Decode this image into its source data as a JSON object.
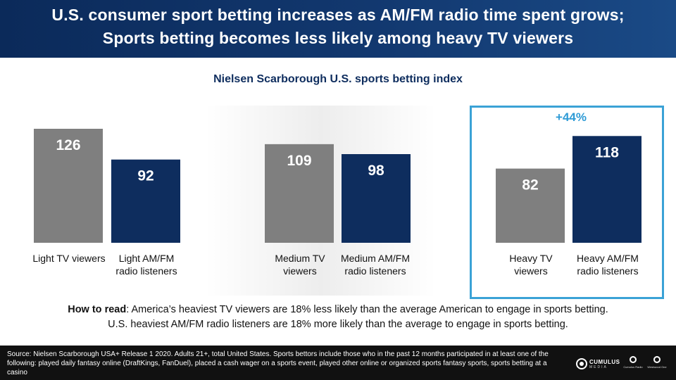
{
  "header": {
    "title_line1": "U.S. consumer sport betting increases as AM/FM radio time spent grows;",
    "title_line2": "Sports betting  becomes less likely among heavy TV viewers"
  },
  "colors": {
    "header_bg": "#12386f",
    "tv_bar": "#7f7f7f",
    "radio_bar": "#0e2d5e",
    "highlight": "#3aa2d6",
    "footer_bg": "#111111"
  },
  "chart_data": {
    "type": "bar",
    "title": "Nielsen Scarborough U.S. sports betting index",
    "categories": [
      "Light TV viewers",
      "Light AM/FM radio listeners",
      "Medium TV viewers",
      "Medium AM/FM radio listeners",
      "Heavy TV viewers",
      "Heavy AM/FM radio listeners"
    ],
    "values": [
      126,
      92,
      109,
      98,
      82,
      118
    ],
    "bar_colors": [
      "#7f7f7f",
      "#0e2d5e",
      "#7f7f7f",
      "#0e2d5e",
      "#7f7f7f",
      "#0e2d5e"
    ],
    "annotation": "+44%",
    "ylim": [
      0,
      130
    ],
    "grid": false,
    "legend": "none"
  },
  "labels": {
    "light_tv": "Light TV viewers",
    "light_radio": "Light AM/FM radio listeners",
    "medium_tv": "Medium TV viewers",
    "medium_radio": "Medium AM/FM radio listeners",
    "heavy_tv": "Heavy TV viewers",
    "heavy_radio": "Heavy AM/FM radio listeners"
  },
  "how_to_read": {
    "lead": "How to read",
    "line1_rest": ": America’s heaviest TV viewers are 18% less likely than the average American to engage in sports betting.",
    "line2": "U.S. heaviest AM/FM radio listeners are 18% more likely than the average to engage in sports betting."
  },
  "footer": {
    "source": "Source: Nielsen Scarborough  USA+ Release 1 2020. Adults 21+, total United States. Sports bettors include those who in the past 12 months participated in at least one of the following: played daily fantasy online (DraftKings, FanDuel), placed a cash wager on a sports event, played other online or organized sports fantasy sports, sports betting at a casino",
    "logo_main_text": "CUMULUS",
    "logo_main_subtext": "MEDIA",
    "logo2_text": "Cumulus Radio",
    "logo3_text": "Westwood One"
  }
}
